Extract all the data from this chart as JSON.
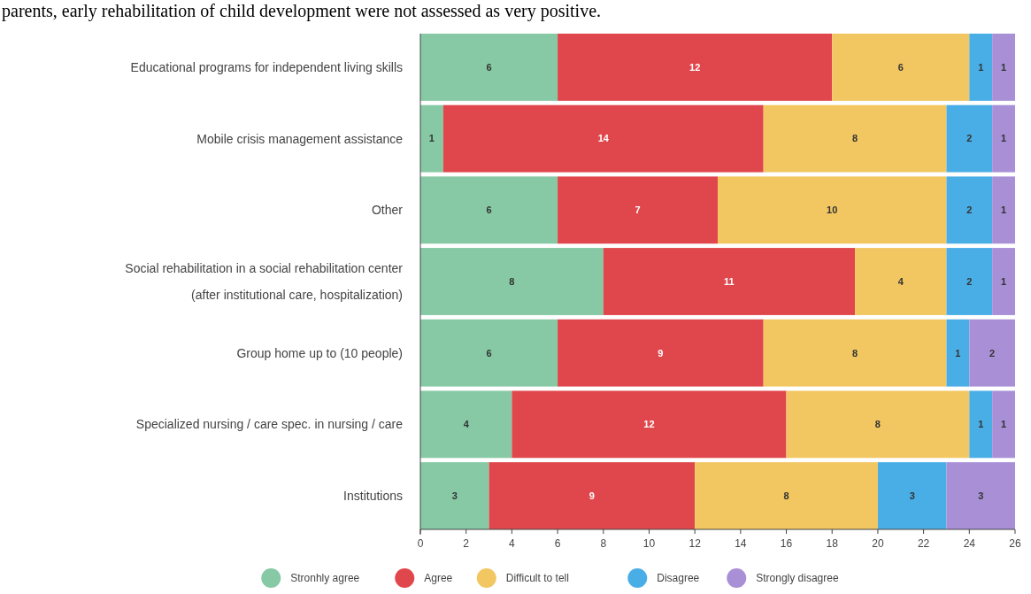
{
  "chart_data": {
    "type": "bar",
    "orientation": "horizontal",
    "stacked": true,
    "data_labels": true,
    "annotations": [
      "parents, early rehabilitation of child development were not assessed as very positive."
    ],
    "categories": [
      "Educational programs for independent living skills",
      "Mobile crisis management assistance",
      "Other",
      "Social rehabilitation in a social rehabilitation center\n(after institutional care, hospitalization)",
      "Group home up to (10 people)",
      "Specialized nursing / care spec. in nursing / care",
      "Institutions"
    ],
    "series": [
      {
        "name": "Stronhly agree",
        "color": "#86c9a4",
        "values": [
          6,
          1,
          6,
          8,
          6,
          4,
          3
        ]
      },
      {
        "name": "Agree",
        "color": "#e0474c",
        "values": [
          12,
          14,
          7,
          11,
          9,
          12,
          9
        ]
      },
      {
        "name": "Difficult to tell",
        "color": "#f2c761",
        "values": [
          6,
          8,
          10,
          4,
          8,
          8,
          8
        ]
      },
      {
        "name": "Disagree",
        "color": "#4aaee6",
        "values": [
          1,
          2,
          2,
          2,
          1,
          1,
          3
        ]
      },
      {
        "name": "Strongly disagree",
        "color": "#a88fd6",
        "values": [
          1,
          1,
          1,
          1,
          2,
          1,
          3
        ]
      }
    ],
    "xlim": [
      0,
      26
    ],
    "xticks": [
      0,
      2,
      4,
      6,
      8,
      10,
      12,
      14,
      16,
      18,
      20,
      22,
      24,
      26
    ],
    "grid": false,
    "legend": "bottom"
  }
}
